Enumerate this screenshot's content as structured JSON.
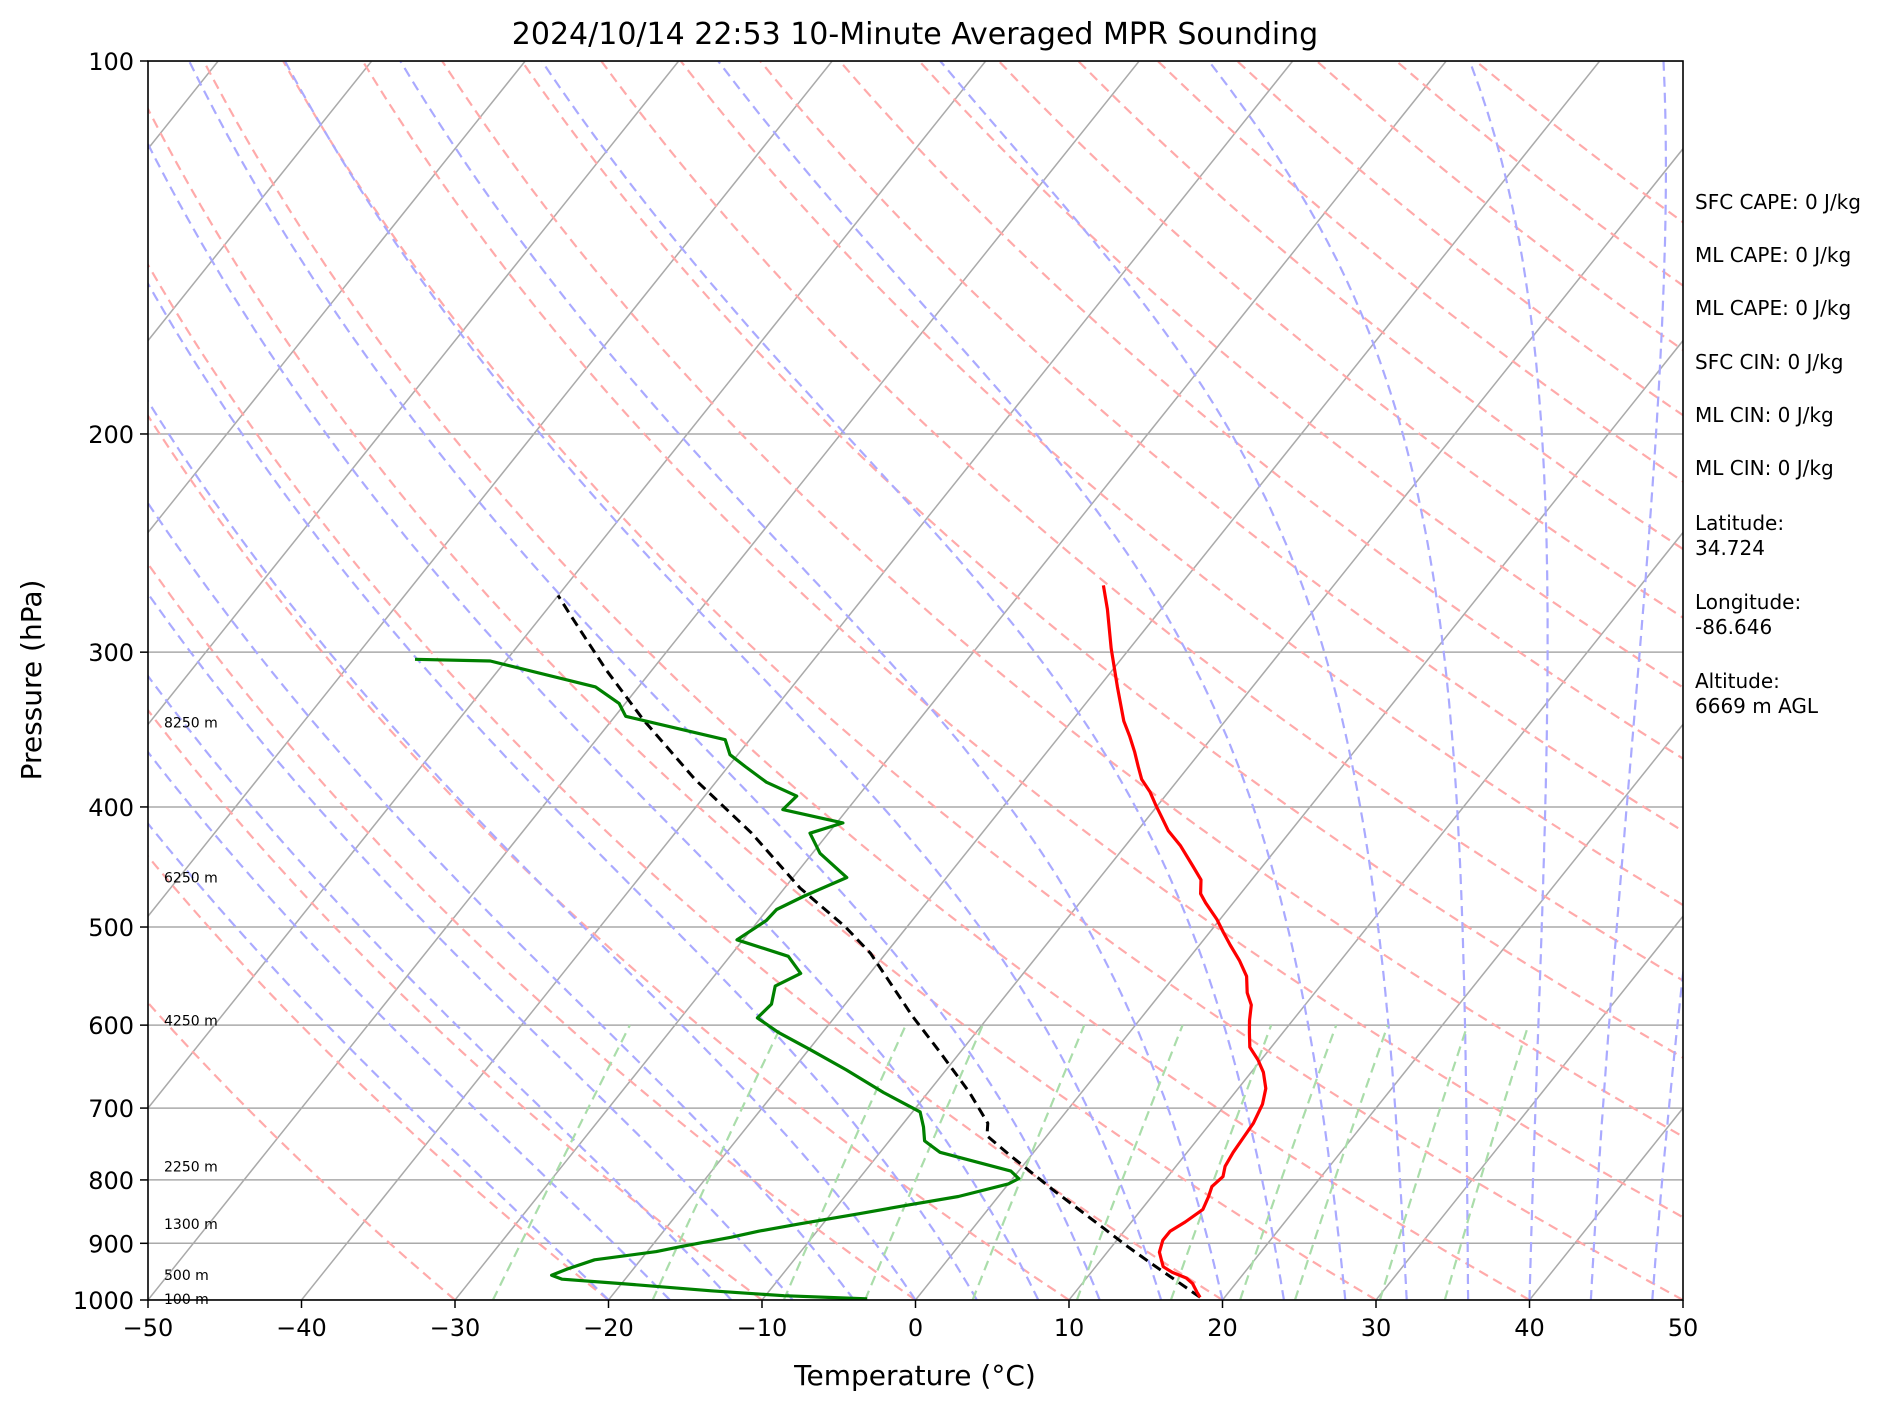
{
  "chart_data": {
    "type": "line",
    "title": "2024/10/14 22:53 10-Minute Averaged MPR Sounding",
    "xlabel": "Temperature (°C)",
    "ylabel": "Pressure (hPa)",
    "xlim": [
      -50,
      50
    ],
    "ylim": [
      1000,
      100
    ],
    "yscale": "log",
    "skew": "skew-T log-P",
    "grid": true,
    "x_ticks": [
      "−50",
      "−40",
      "−30",
      "−20",
      "−10",
      "0",
      "10",
      "20",
      "30",
      "40",
      "50"
    ],
    "y_ticks": [
      {
        "p": 1000,
        "label": "1000"
      },
      {
        "p": 900,
        "label": "900"
      },
      {
        "p": 800,
        "label": "800"
      },
      {
        "p": 700,
        "label": "700"
      },
      {
        "p": 600,
        "label": "600"
      },
      {
        "p": 500,
        "label": "500"
      },
      {
        "p": 400,
        "label": "400"
      },
      {
        "p": 300,
        "label": "300"
      },
      {
        "p": 200,
        "label": "200"
      },
      {
        "p": 100,
        "label": "100"
      }
    ],
    "height_labels": [
      {
        "p": 998,
        "label": "100 m"
      },
      {
        "p": 955,
        "label": "500 m"
      },
      {
        "p": 868,
        "label": "1300 m"
      },
      {
        "p": 780,
        "label": "2250 m"
      },
      {
        "p": 595,
        "label": "4250 m"
      },
      {
        "p": 456,
        "label": "6250 m"
      },
      {
        "p": 342,
        "label": "8250 m"
      }
    ],
    "temperature": {
      "color": "#ff0000",
      "points": [
        [
          18.4,
          995
        ],
        [
          17.9,
          985
        ],
        [
          17.2,
          970
        ],
        [
          16.5,
          960
        ],
        [
          15.3,
          950
        ],
        [
          14.4,
          940
        ],
        [
          13.8,
          925
        ],
        [
          13.4,
          915
        ],
        [
          13.0,
          895
        ],
        [
          13.0,
          880
        ],
        [
          13.5,
          865
        ],
        [
          14.0,
          845
        ],
        [
          13.7,
          825
        ],
        [
          13.4,
          810
        ],
        [
          13.6,
          795
        ],
        [
          13.2,
          780
        ],
        [
          13.0,
          760
        ],
        [
          12.9,
          740
        ],
        [
          12.8,
          720
        ],
        [
          12.4,
          695
        ],
        [
          11.8,
          675
        ],
        [
          10.8,
          655
        ],
        [
          9.8,
          640
        ],
        [
          8.6,
          625
        ],
        [
          7.8,
          608
        ],
        [
          7.2,
          595
        ],
        [
          6.5,
          578
        ],
        [
          5.6,
          565
        ],
        [
          4.7,
          548
        ],
        [
          3.4,
          532
        ],
        [
          2.0,
          517
        ],
        [
          0.9,
          505
        ],
        [
          -0.2,
          493
        ],
        [
          -1.8,
          478
        ],
        [
          -2.6,
          470
        ],
        [
          -3.3,
          458
        ],
        [
          -4.6,
          446
        ],
        [
          -6.4,
          430
        ],
        [
          -8.0,
          418
        ],
        [
          -9.2,
          407
        ],
        [
          -10.1,
          399
        ],
        [
          -11.2,
          389
        ],
        [
          -12.4,
          380
        ],
        [
          -13.3,
          371
        ],
        [
          -14.3,
          361
        ],
        [
          -15.4,
          351
        ],
        [
          -16.6,
          341
        ],
        [
          -18.8,
          320
        ],
        [
          -21.2,
          298
        ],
        [
          -23.5,
          277
        ],
        [
          -25.0,
          265
        ]
      ]
    },
    "dewpoint": {
      "color": "#008000",
      "points": [
        [
          -3.2,
          998
        ],
        [
          -8.8,
          992
        ],
        [
          -13.8,
          983
        ],
        [
          -20.0,
          970
        ],
        [
          -24.1,
          962
        ],
        [
          -25.0,
          955
        ],
        [
          -24.3,
          944
        ],
        [
          -23.0,
          928
        ],
        [
          -19.4,
          914
        ],
        [
          -18.0,
          905
        ],
        [
          -15.3,
          890
        ],
        [
          -13.8,
          880
        ],
        [
          -11.5,
          868
        ],
        [
          -8.2,
          852
        ],
        [
          -5.4,
          838
        ],
        [
          -2.6,
          825
        ],
        [
          0.0,
          806
        ],
        [
          0.4,
          798
        ],
        [
          -0.5,
          787
        ],
        [
          -6.1,
          760
        ],
        [
          -7.7,
          744
        ],
        [
          -8.5,
          725
        ],
        [
          -9.5,
          705
        ],
        [
          -12.9,
          680
        ],
        [
          -16.5,
          652
        ],
        [
          -19.9,
          628
        ],
        [
          -22.9,
          608
        ],
        [
          -25.0,
          592
        ],
        [
          -24.8,
          577
        ],
        [
          -25.5,
          558
        ],
        [
          -24.5,
          545
        ],
        [
          -26.2,
          528
        ],
        [
          -30.4,
          512
        ],
        [
          -29.5,
          494
        ],
        [
          -29.4,
          484
        ],
        [
          -28.3,
          472
        ],
        [
          -26.5,
          456
        ],
        [
          -29.5,
          436
        ],
        [
          -31.2,
          420
        ],
        [
          -29.6,
          412
        ],
        [
          -34.2,
          402
        ],
        [
          -34.0,
          392
        ],
        [
          -36.7,
          382
        ],
        [
          -38.9,
          371
        ],
        [
          -40.5,
          363
        ],
        [
          -41.6,
          353
        ],
        [
          -49.3,
          338
        ],
        [
          -50.4,
          330
        ],
        [
          -52.8,
          320
        ],
        [
          -61.0,
          305
        ],
        [
          -66.0,
          304
        ]
      ]
    },
    "parcel": {
      "color": "#000000",
      "points": [
        [
          18.4,
          995
        ],
        [
          16.0,
          965
        ],
        [
          13.5,
          935
        ],
        [
          11.0,
          905
        ],
        [
          8.5,
          875
        ],
        [
          6.0,
          846
        ],
        [
          3.5,
          818
        ],
        [
          1.0,
          790
        ],
        [
          -1.5,
          763
        ],
        [
          -3.9,
          737
        ],
        [
          -4.5,
          720
        ],
        [
          -7.3,
          680
        ],
        [
          -11.4,
          630
        ],
        [
          -15.0,
          590
        ],
        [
          -21.0,
          525
        ],
        [
          -24.0,
          500
        ],
        [
          -29.0,
          465
        ],
        [
          -35.0,
          420
        ],
        [
          -41.5,
          380
        ],
        [
          -48.0,
          340
        ],
        [
          -53.0,
          310
        ],
        [
          -58.0,
          281
        ],
        [
          -60.0,
          270
        ]
      ]
    },
    "stats": [
      "SFC CAPE: 0 J/kg",
      "ML CAPE: 0 J/kg",
      "ML CAPE: 0 J/kg",
      "SFC CIN: 0 J/kg",
      "ML CIN: 0 J/kg",
      "ML CIN: 0 J/kg",
      "Latitude:",
      "34.724",
      "Longitude:",
      "-86.646",
      "Altitude:",
      "6669 m AGL"
    ],
    "colors": {
      "isotherm": "#aaaaaa",
      "isobar": "#aaaaaa",
      "dry_adiabat": "#ffaaaa",
      "moist_adiabat": "#aaaaff",
      "mixing_ratio": "#aaddaa"
    }
  }
}
